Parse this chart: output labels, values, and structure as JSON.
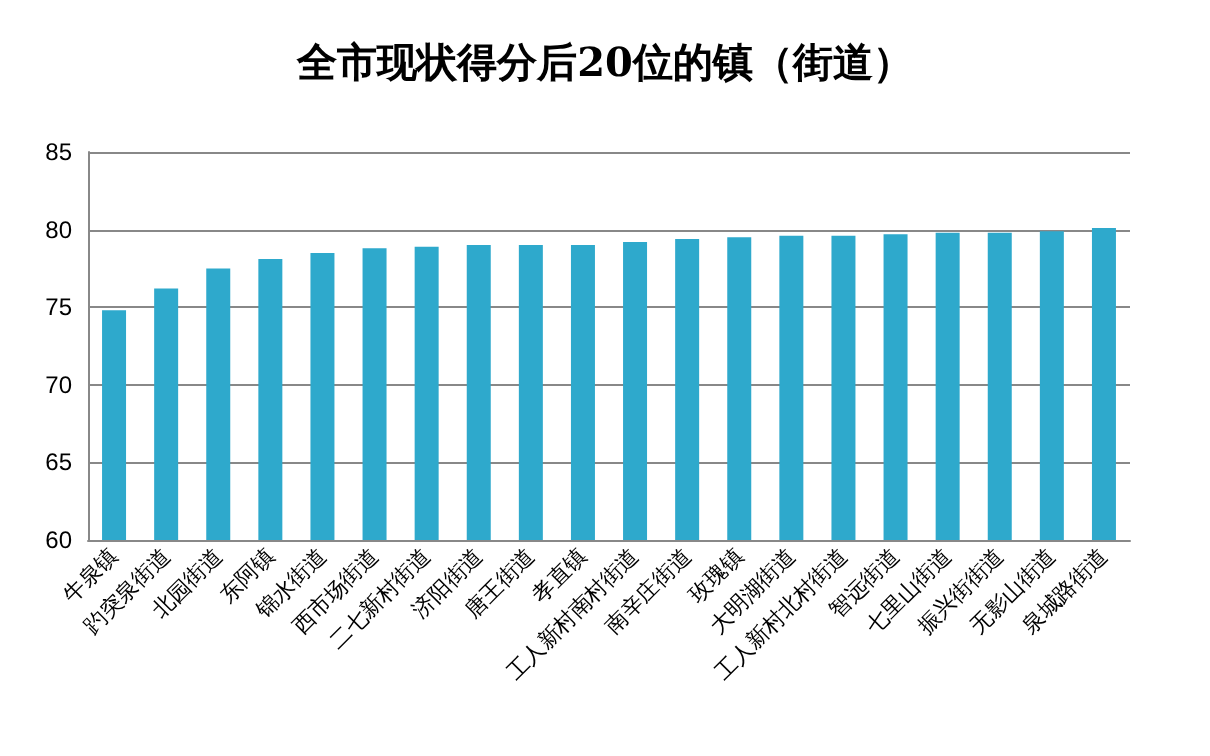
{
  "chart_data": {
    "type": "bar",
    "title": "全市现状得分后20位的镇（街道）",
    "categories": [
      "牛泉镇",
      "趵突泉街道",
      "北园街道",
      "东阿镇",
      "锦水街道",
      "西市场街道",
      "二七新村街道",
      "济阳街道",
      "唐王街道",
      "孝直镇",
      "工人新村南村街道",
      "南辛庄街道",
      "玫瑰镇",
      "大明湖街道",
      "工人新村北村街道",
      "智远街道",
      "七里山街道",
      "振兴街街道",
      "无影山街道",
      "泉城路街道"
    ],
    "values": [
      74.8,
      76.2,
      77.5,
      78.1,
      78.5,
      78.8,
      78.9,
      79.0,
      79.0,
      79.0,
      79.2,
      79.4,
      79.5,
      79.6,
      79.6,
      79.7,
      79.8,
      79.8,
      79.9,
      80.1
    ],
    "color": "#2ea9cc",
    "ylim": [
      60,
      85
    ],
    "yticks": [
      60,
      65,
      70,
      75,
      80,
      85
    ],
    "grid": "y"
  }
}
